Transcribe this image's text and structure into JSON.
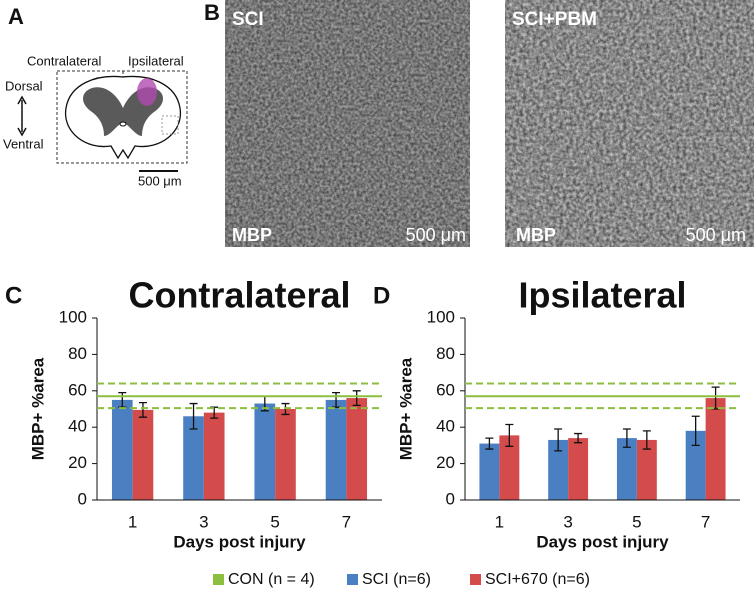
{
  "panels": {
    "A": {
      "label": "A",
      "contralateral": "Contralateral",
      "ipsilateral": "Ipsilateral",
      "dorsal": "Dorsal",
      "ventral": "Ventral",
      "scale": "500 μm"
    },
    "B": {
      "label": "B",
      "images": [
        {
          "title": "SCI",
          "stain": "MBP",
          "scale": "500 μm"
        },
        {
          "title": "SCI+PBM",
          "stain": "MBP",
          "scale": "500 μm"
        }
      ]
    }
  },
  "chart_data": [
    {
      "type": "bar",
      "panel_label": "C",
      "title": "Contralateral",
      "ylabel": "MBP+ %area",
      "xlabel": "Days post injury",
      "categories": [
        "1",
        "3",
        "5",
        "7"
      ],
      "ylim": [
        0,
        100
      ],
      "yticks": [
        0,
        20,
        40,
        60,
        80,
        100
      ],
      "reference": {
        "name": "CON (n = 4)",
        "color": "#8cbf3f",
        "value": 57,
        "lower": 50.5,
        "upper": 64
      },
      "series": [
        {
          "name": "SCI (n=6)",
          "color": "#4a7fc1",
          "values": [
            55,
            46,
            53,
            55
          ],
          "errors": [
            4,
            7,
            4,
            4
          ]
        },
        {
          "name": "SCI+670 (n=6)",
          "color": "#d34b4b",
          "values": [
            49.5,
            48,
            50,
            56
          ],
          "errors": [
            4,
            3,
            3,
            4
          ]
        }
      ]
    },
    {
      "type": "bar",
      "panel_label": "D",
      "title": "Ipsilateral",
      "ylabel": "MBP+ %area",
      "xlabel": "Days post injury",
      "categories": [
        "1",
        "3",
        "5",
        "7"
      ],
      "ylim": [
        0,
        100
      ],
      "yticks": [
        0,
        20,
        40,
        60,
        80,
        100
      ],
      "reference": {
        "color": "#8cbf3f",
        "value": 57,
        "lower": 50.5,
        "upper": 64
      },
      "series": [
        {
          "color": "#4a7fc1",
          "values": [
            31,
            33,
            34,
            38
          ],
          "errors": [
            3,
            6,
            5,
            8
          ]
        },
        {
          "color": "#d34b4b",
          "values": [
            35.5,
            34,
            33,
            56
          ],
          "errors": [
            6,
            2.5,
            5,
            6
          ]
        }
      ]
    }
  ]
}
